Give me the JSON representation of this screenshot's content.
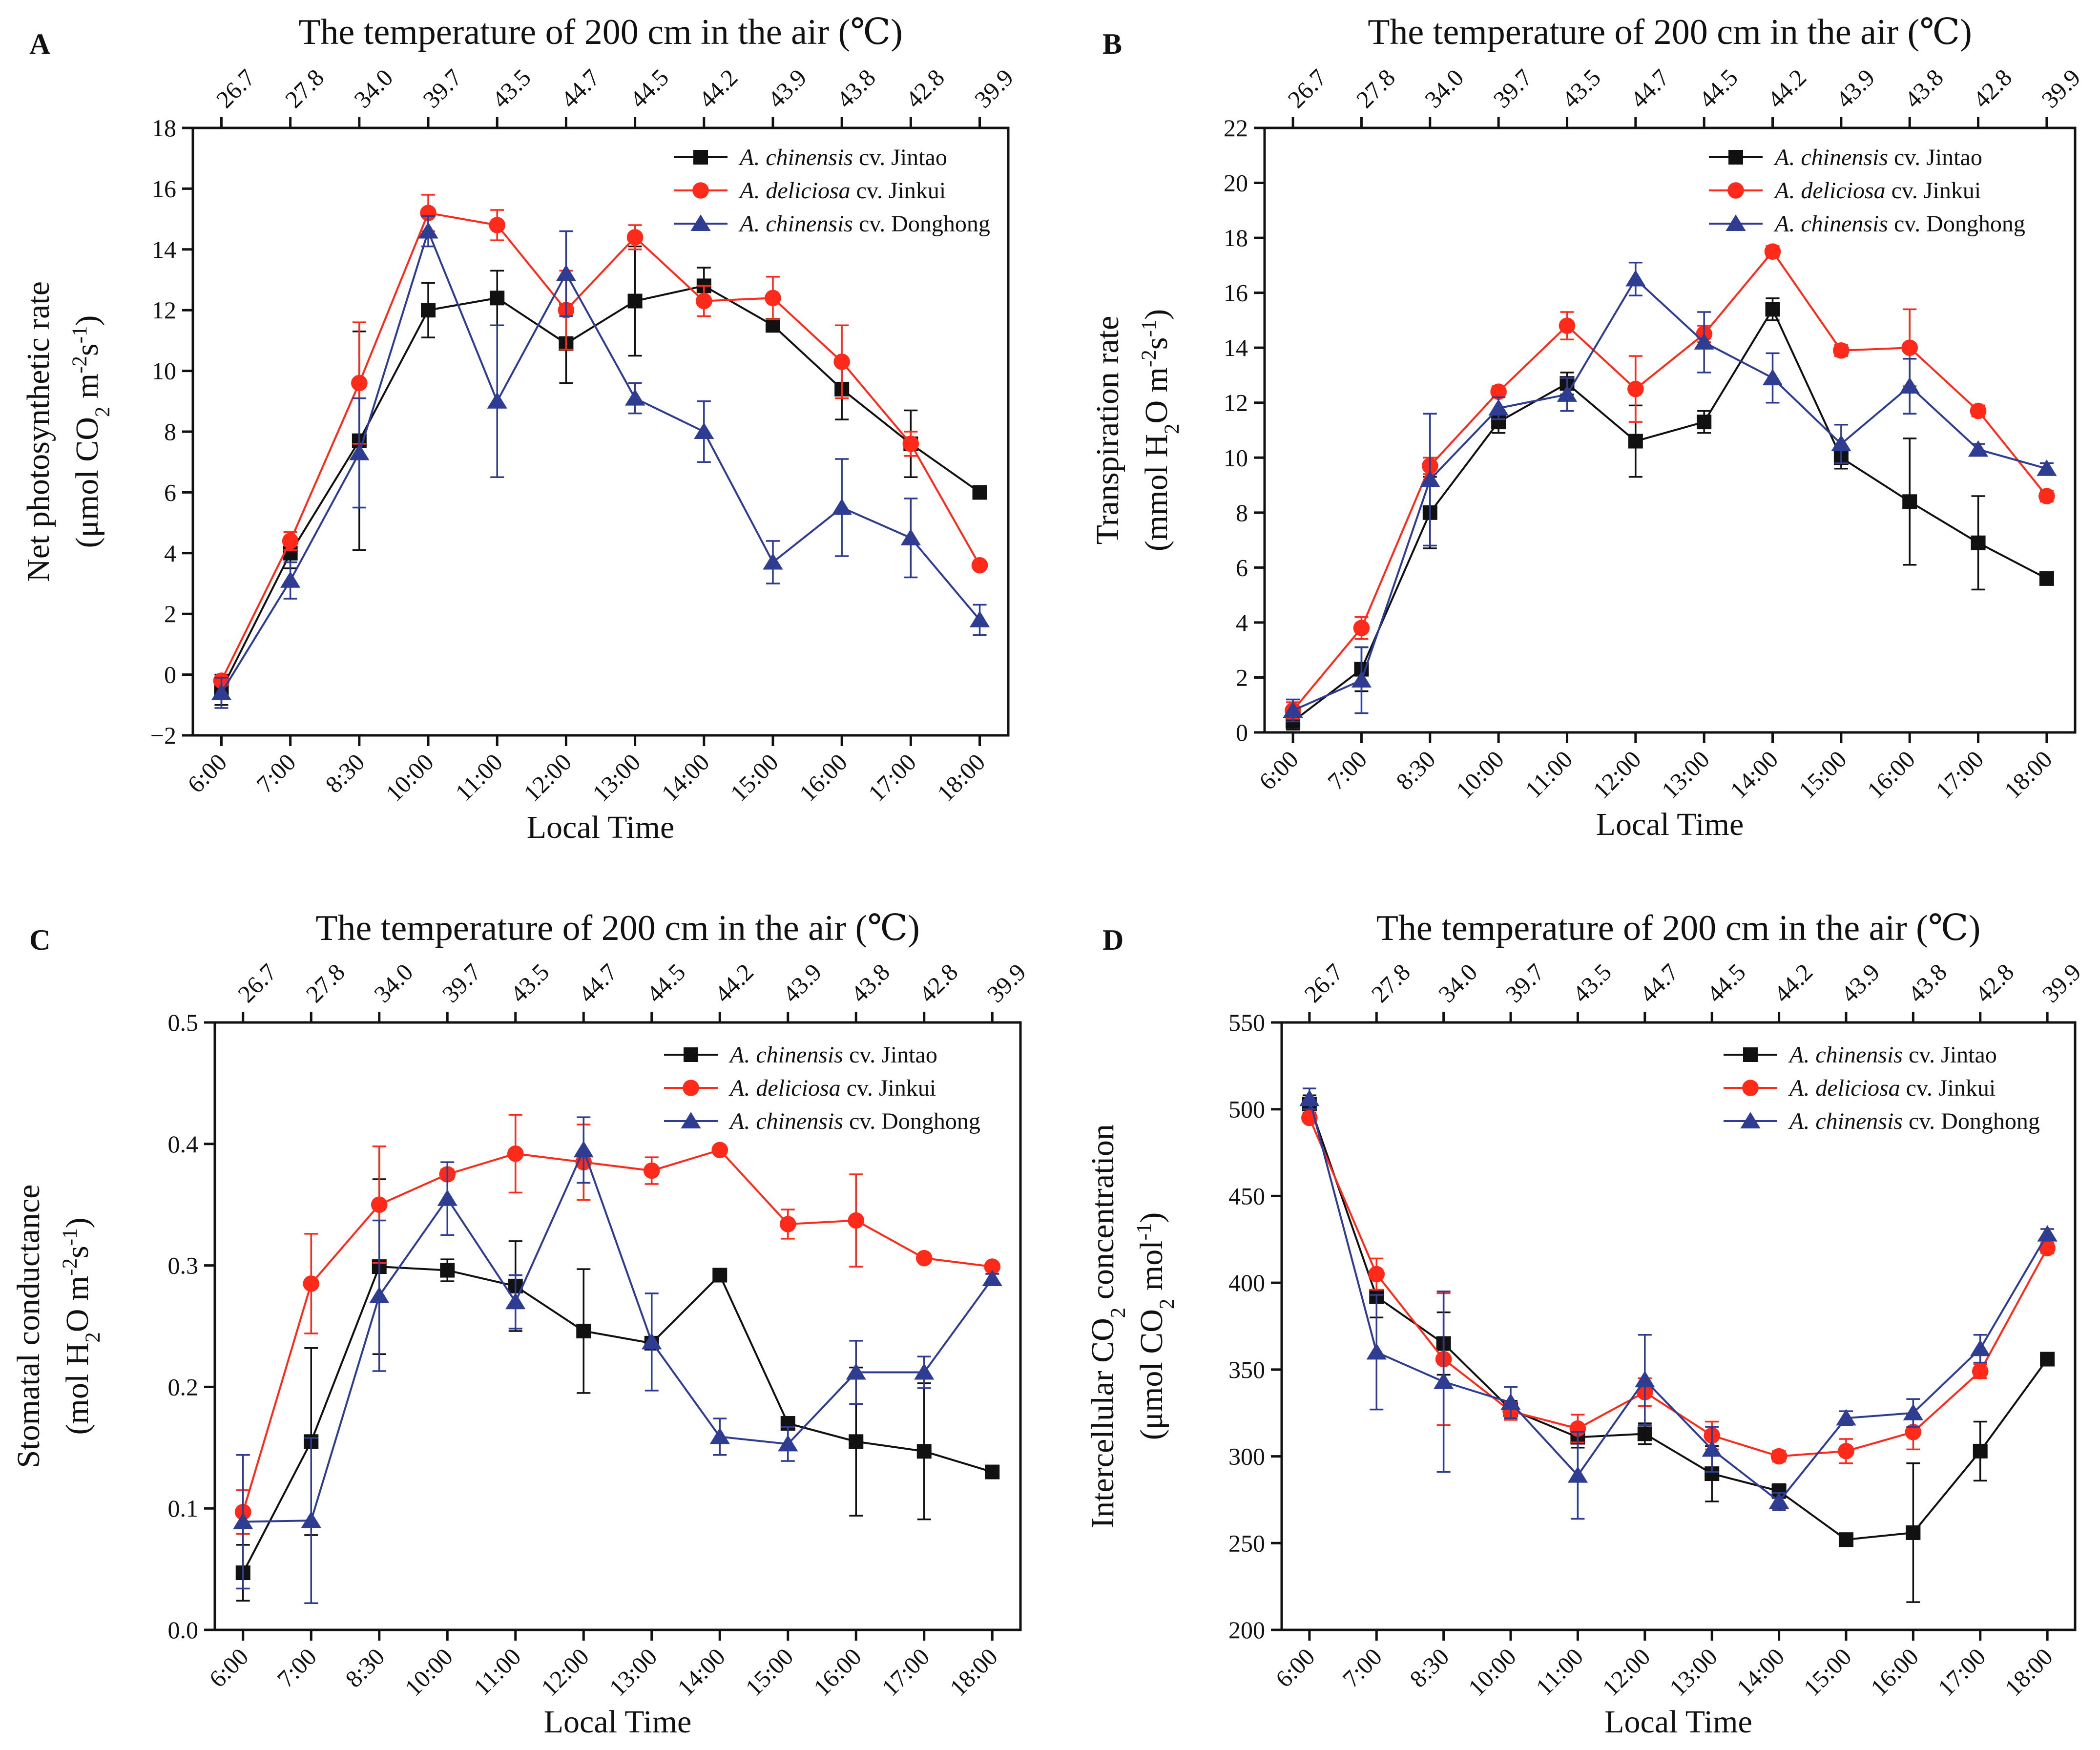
{
  "figure": {
    "top_axis_title": "The temperature of 200 cm in the air  (℃)",
    "x_axis_title": "Local Time",
    "time_labels": [
      "6:00",
      "7:00",
      "8:30",
      "10:00",
      "11:00",
      "12:00",
      "13:00",
      "14:00",
      "15:00",
      "16:00",
      "17:00",
      "18:00"
    ],
    "temperature_labels": [
      "26.7",
      "27.8",
      "34.0",
      "39.7",
      "43.5",
      "44.7",
      "44.5",
      "44.2",
      "43.9",
      "43.8",
      "42.8",
      "39.9"
    ],
    "legend": [
      {
        "italic": "A. chinensis",
        "rest": " cv. Jintao",
        "color": "#111111",
        "marker": "square"
      },
      {
        "italic": "A. deliciosa",
        "rest": " cv. Jinkui",
        "color": "#ff2a1a",
        "marker": "circle"
      },
      {
        "italic": "A. chinensis",
        "rest": " cv. Donghong",
        "color": "#2e3d91",
        "marker": "triangle"
      }
    ]
  },
  "chart_data": [
    {
      "type": "line",
      "panel": "A",
      "title": "The temperature of 200 cm in the air  (℃)",
      "xlabel": "Local Time",
      "ylabel": {
        "line1": "Net photosynthetic rate",
        "line2_parts": [
          {
            "t": "(μmol CO"
          },
          {
            "t": "2",
            "sub": true
          },
          {
            "t": " m"
          },
          {
            "t": "-2",
            "sup": true
          },
          {
            "t": "s"
          },
          {
            "t": "-1",
            "sup": true
          },
          {
            "t": ")"
          }
        ]
      },
      "categories": [
        "6:00",
        "7:00",
        "8:30",
        "10:00",
        "11:00",
        "12:00",
        "13:00",
        "14:00",
        "15:00",
        "16:00",
        "17:00",
        "18:00"
      ],
      "top_ticks": [
        "26.7",
        "27.8",
        "34.0",
        "39.7",
        "43.5",
        "44.7",
        "44.5",
        "44.2",
        "43.9",
        "43.8",
        "42.8",
        "39.9"
      ],
      "ylim": [
        -2,
        18
      ],
      "yticks": [
        -2,
        0,
        2,
        4,
        6,
        8,
        10,
        12,
        14,
        16,
        18
      ],
      "ytick_labels": [
        "−2",
        "0",
        "2",
        "4",
        "6",
        "8",
        "10",
        "12",
        "14",
        "16",
        "18"
      ],
      "series": [
        {
          "name": "A. chinensis cv. Jintao",
          "values": [
            -0.5,
            4.0,
            7.7,
            12.0,
            12.4,
            10.9,
            12.3,
            12.8,
            11.5,
            9.4,
            7.6,
            6.0
          ],
          "errors": [
            0.5,
            0.5,
            3.6,
            0.9,
            0.9,
            1.3,
            1.8,
            0.6,
            0.2,
            1.0,
            1.1,
            0.1
          ]
        },
        {
          "name": "A. deliciosa cv. Jinkui",
          "values": [
            -0.2,
            4.4,
            9.6,
            15.2,
            14.8,
            12.0,
            14.4,
            12.3,
            12.4,
            10.3,
            7.6,
            3.6
          ],
          "errors": [
            0.1,
            0.3,
            2.0,
            0.6,
            0.5,
            1.3,
            0.4,
            0.5,
            0.7,
            1.2,
            0.4,
            0.1
          ]
        },
        {
          "name": "A. chinensis cv. Donghong",
          "values": [
            -0.6,
            3.1,
            7.3,
            14.6,
            9.0,
            13.2,
            9.1,
            8.0,
            3.7,
            5.5,
            4.5,
            1.8
          ],
          "errors": [
            0.5,
            0.6,
            1.8,
            0.5,
            2.5,
            1.4,
            0.5,
            1.0,
            0.7,
            1.6,
            1.3,
            0.5
          ]
        }
      ]
    },
    {
      "type": "line",
      "panel": "B",
      "title": "The temperature of 200 cm in the air  (℃)",
      "xlabel": "Local Time",
      "ylabel": {
        "line1": "Transpiration rate",
        "line2_parts": [
          {
            "t": "(mmol H"
          },
          {
            "t": "2",
            "sub": true
          },
          {
            "t": "O m"
          },
          {
            "t": "-2",
            "sup": true
          },
          {
            "t": "s"
          },
          {
            "t": "-1",
            "sup": true
          },
          {
            "t": ")"
          }
        ]
      },
      "categories": [
        "6:00",
        "7:00",
        "8:30",
        "10:00",
        "11:00",
        "12:00",
        "13:00",
        "14:00",
        "15:00",
        "16:00",
        "17:00",
        "18:00"
      ],
      "top_ticks": [
        "26.7",
        "27.8",
        "34.0",
        "39.7",
        "43.5",
        "44.7",
        "44.5",
        "44.2",
        "43.9",
        "43.8",
        "42.8",
        "39.9"
      ],
      "ylim": [
        0,
        22
      ],
      "yticks": [
        0,
        2,
        4,
        6,
        8,
        10,
        12,
        14,
        16,
        18,
        20,
        22
      ],
      "ytick_labels": [
        "0",
        "2",
        "4",
        "6",
        "8",
        "10",
        "12",
        "14",
        "16",
        "18",
        "20",
        "22"
      ],
      "series": [
        {
          "name": "A. chinensis cv. Jintao",
          "values": [
            0.4,
            2.3,
            8.0,
            11.3,
            12.7,
            10.6,
            11.3,
            15.4,
            10.0,
            8.4,
            6.9,
            5.6
          ],
          "errors": [
            0.3,
            0.8,
            1.3,
            0.4,
            0.4,
            1.3,
            0.4,
            0.4,
            0.4,
            2.3,
            1.7,
            0.1
          ]
        },
        {
          "name": "A. deliciosa cv. Jinkui",
          "values": [
            0.8,
            3.8,
            9.7,
            12.4,
            14.8,
            12.5,
            14.5,
            17.5,
            13.9,
            14.0,
            11.7,
            8.6
          ],
          "errors": [
            0.3,
            0.4,
            0.3,
            0.2,
            0.5,
            1.2,
            0.3,
            0.2,
            0.2,
            1.4,
            0.2,
            0.2
          ]
        },
        {
          "name": "A. chinensis cv. Donghong",
          "values": [
            0.8,
            1.9,
            9.2,
            11.8,
            12.3,
            16.5,
            14.2,
            12.9,
            10.5,
            12.6,
            10.3,
            9.6
          ],
          "errors": [
            0.4,
            1.2,
            2.4,
            0.4,
            0.6,
            0.6,
            1.1,
            0.9,
            0.7,
            1.0,
            0.2,
            0.2
          ]
        }
      ]
    },
    {
      "type": "line",
      "panel": "C",
      "title": "The temperature of 200 cm in the air  (℃)",
      "xlabel": "Local Time",
      "ylabel": {
        "line1": "Stomatal conductance",
        "line2_parts": [
          {
            "t": "(mol H"
          },
          {
            "t": "2",
            "sub": true
          },
          {
            "t": "O m"
          },
          {
            "t": "-2",
            "sup": true
          },
          {
            "t": "s"
          },
          {
            "t": "-1",
            "sup": true
          },
          {
            "t": ")"
          }
        ]
      },
      "categories": [
        "6:00",
        "7:00",
        "8:30",
        "10:00",
        "11:00",
        "12:00",
        "13:00",
        "14:00",
        "15:00",
        "16:00",
        "17:00",
        "18:00"
      ],
      "top_ticks": [
        "26.7",
        "27.8",
        "34.0",
        "39.7",
        "43.5",
        "44.7",
        "44.5",
        "44.2",
        "43.9",
        "43.8",
        "42.8",
        "39.9"
      ],
      "ylim": [
        0,
        0.5
      ],
      "yticks": [
        0,
        0.1,
        0.2,
        0.3,
        0.4,
        0.5
      ],
      "ytick_labels": [
        "0.0",
        "0.1",
        "0.2",
        "0.3",
        "0.4",
        "0.5"
      ],
      "series": [
        {
          "name": "A. chinensis cv. Jintao",
          "values": [
            0.047,
            0.155,
            0.299,
            0.296,
            0.283,
            0.246,
            0.236,
            0.292,
            0.17,
            0.155,
            0.147,
            0.13
          ],
          "errors": [
            0.023,
            0.077,
            0.072,
            0.009,
            0.037,
            0.051,
            0.003,
            0.003,
            0.003,
            0.061,
            0.056,
            0.003
          ]
        },
        {
          "name": "A. deliciosa cv. Jinkui",
          "values": [
            0.097,
            0.285,
            0.35,
            0.375,
            0.392,
            0.385,
            0.378,
            0.395,
            0.334,
            0.337,
            0.306,
            0.299
          ],
          "errors": [
            0.018,
            0.041,
            0.048,
            0.004,
            0.032,
            0.031,
            0.011,
            0.003,
            0.012,
            0.038,
            0.003,
            0.003
          ]
        },
        {
          "name": "A. chinensis cv. Donghong",
          "values": [
            0.089,
            0.09,
            0.275,
            0.355,
            0.27,
            0.395,
            0.237,
            0.159,
            0.153,
            0.212,
            0.212,
            0.289
          ],
          "errors": [
            0.055,
            0.068,
            0.062,
            0.03,
            0.022,
            0.027,
            0.04,
            0.015,
            0.014,
            0.026,
            0.013,
            0.004
          ]
        }
      ]
    },
    {
      "type": "line",
      "panel": "D",
      "title": "The temperature of 200 cm in the air  (℃)",
      "xlabel": "Local Time",
      "ylabel": {
        "line1_parts": [
          {
            "t": "Intercellular CO"
          },
          {
            "t": "2",
            "sub": true
          },
          {
            "t": " concentration"
          }
        ],
        "line2_parts": [
          {
            "t": "(μmol CO"
          },
          {
            "t": "2",
            "sub": true
          },
          {
            "t": " mol"
          },
          {
            "t": "-1",
            "sup": true
          },
          {
            "t": ")"
          }
        ]
      },
      "categories": [
        "6:00",
        "7:00",
        "8:30",
        "10:00",
        "11:00",
        "12:00",
        "13:00",
        "14:00",
        "15:00",
        "16:00",
        "17:00",
        "18:00"
      ],
      "top_ticks": [
        "26.7",
        "27.8",
        "34.0",
        "39.7",
        "43.5",
        "44.7",
        "44.5",
        "44.2",
        "43.9",
        "43.8",
        "42.8",
        "39.9"
      ],
      "ylim": [
        200,
        550
      ],
      "yticks": [
        200,
        250,
        300,
        350,
        400,
        450,
        500,
        550
      ],
      "ytick_labels": [
        "200",
        "250",
        "300",
        "350",
        "400",
        "450",
        "500",
        "550"
      ],
      "series": [
        {
          "name": "A. chinensis cv. Jintao",
          "values": [
            503,
            392,
            365,
            327,
            311,
            313,
            290,
            280,
            252,
            256,
            303,
            356
          ],
          "errors": [
            5,
            12,
            18,
            5,
            6,
            6,
            16,
            4,
            2,
            40,
            17,
            2
          ]
        },
        {
          "name": "A. deliciosa cv. Jinkui",
          "values": [
            495,
            405,
            356,
            326,
            316,
            337,
            312,
            300,
            303,
            314,
            349,
            420
          ],
          "errors": [
            2,
            9,
            38,
            5,
            8,
            8,
            8,
            3,
            7,
            10,
            4,
            3
          ]
        },
        {
          "name": "A. chinensis cv. Donghong",
          "values": [
            506,
            360,
            343,
            331,
            289,
            344,
            304,
            274,
            322,
            325,
            362,
            428
          ],
          "errors": [
            6,
            33,
            52,
            9,
            25,
            26,
            13,
            5,
            4,
            8,
            8,
            3
          ]
        }
      ]
    }
  ]
}
